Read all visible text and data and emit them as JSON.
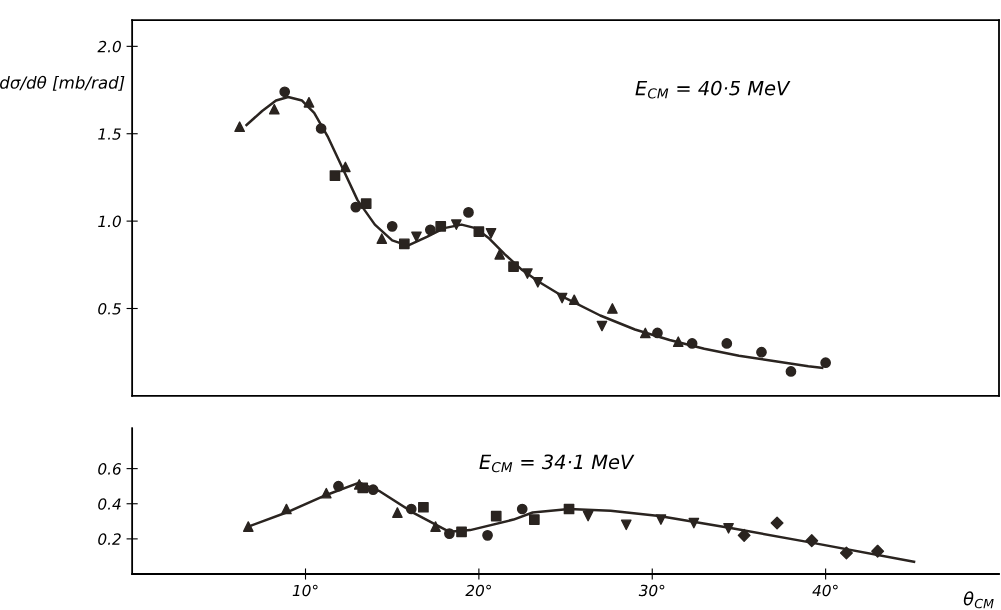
{
  "chart_data": [
    {
      "type": "scatter",
      "ylabel": "dσ/dθ [mb/rad]",
      "annotations": [
        "E$_{CM}$ = 40·5 MeV"
      ],
      "xlim": [
        0,
        50
      ],
      "ylim": [
        0,
        2.15
      ],
      "yticks": [
        {
          "value": 0.5,
          "label": "0.5"
        },
        {
          "value": 1.0,
          "label": "1.0"
        },
        {
          "value": 1.5,
          "label": "1.5"
        },
        {
          "value": 2.0,
          "label": "2.0"
        }
      ],
      "tick_labels": "y",
      "grid": false,
      "legend": false,
      "series": [
        {
          "type": "line",
          "color": "#2a2420",
          "marker": "none",
          "line_style": "solid",
          "x": [
            6.6,
            7.5,
            8.3,
            9.0,
            9.8,
            10.5,
            11.3,
            12.2,
            13.0,
            14.0,
            15.0,
            15.9,
            17.0,
            18.0,
            19.0,
            19.8,
            20.6,
            21.5,
            22.5,
            23.5,
            25.0,
            27.0,
            29.0,
            31.0,
            33.0,
            35.0,
            37.0,
            39.0,
            39.8
          ],
          "values": [
            1.55,
            1.63,
            1.69,
            1.71,
            1.69,
            1.62,
            1.48,
            1.29,
            1.12,
            0.98,
            0.89,
            0.86,
            0.91,
            0.96,
            0.98,
            0.96,
            0.9,
            0.81,
            0.72,
            0.65,
            0.56,
            0.46,
            0.38,
            0.32,
            0.27,
            0.23,
            0.2,
            0.17,
            0.16
          ]
        },
        {
          "type": "scatter",
          "color": "#2a2420",
          "marker": "circle",
          "x": [
            8.8,
            10.9,
            12.9,
            15.0,
            17.2,
            19.4,
            30.3,
            32.3,
            34.3,
            36.3,
            38.0,
            40.0
          ],
          "values": [
            1.74,
            1.53,
            1.08,
            0.97,
            0.95,
            1.05,
            0.36,
            0.3,
            0.3,
            0.25,
            0.14,
            0.19
          ]
        },
        {
          "type": "scatter",
          "color": "#2a2420",
          "marker": "triangle",
          "x": [
            6.2,
            8.2,
            10.2,
            12.3,
            14.4,
            21.2,
            25.5,
            27.7,
            29.6,
            31.5
          ],
          "values": [
            1.54,
            1.64,
            1.68,
            1.31,
            0.9,
            0.81,
            0.55,
            0.5,
            0.36,
            0.31
          ]
        },
        {
          "type": "scatter",
          "color": "#2a2420",
          "marker": "square",
          "x": [
            11.7,
            13.5,
            15.7,
            17.8,
            20.0,
            22.0
          ],
          "values": [
            1.26,
            1.1,
            0.87,
            0.97,
            0.94,
            0.74
          ]
        },
        {
          "type": "scatter",
          "color": "#2a2420",
          "marker": "triangle_down",
          "x": [
            16.4,
            18.7,
            20.7,
            22.8,
            23.4,
            24.8,
            27.1
          ],
          "values": [
            0.91,
            0.98,
            0.93,
            0.7,
            0.65,
            0.56,
            0.4
          ]
        }
      ]
    },
    {
      "type": "scatter",
      "xlabel": "θ$_{CM}$",
      "annotations": [
        "E$_{CM}$ = 34·1 MeV"
      ],
      "xlim": [
        0,
        50
      ],
      "ylim": [
        0,
        0.83
      ],
      "xticks": [
        {
          "value": 10,
          "label": "10°"
        },
        {
          "value": 20,
          "label": "20°"
        },
        {
          "value": 30,
          "label": "30°"
        },
        {
          "value": 40,
          "label": "40°"
        }
      ],
      "yticks": [
        0.2,
        0.4,
        0.6
      ],
      "grid": false,
      "legend": false,
      "series": [
        {
          "type": "line",
          "color": "#2a2420",
          "marker": "none",
          "line_style": "solid",
          "x": [
            6.7,
            8.9,
            11.2,
            13.1,
            14.3,
            16.2,
            18.3,
            19.5,
            22.0,
            23.1,
            25.2,
            27.6,
            30.4,
            34.6,
            39.1,
            45.1
          ],
          "values": [
            0.27,
            0.35,
            0.45,
            0.52,
            0.47,
            0.35,
            0.24,
            0.25,
            0.31,
            0.35,
            0.37,
            0.36,
            0.33,
            0.26,
            0.18,
            0.07
          ]
        },
        {
          "type": "scatter",
          "color": "#2a2420",
          "marker": "circle",
          "x": [
            11.9,
            13.9,
            16.1,
            18.3,
            20.5,
            22.5
          ],
          "values": [
            0.5,
            0.48,
            0.37,
            0.23,
            0.22,
            0.37
          ]
        },
        {
          "type": "scatter",
          "color": "#2a2420",
          "marker": "triangle",
          "x": [
            6.7,
            8.9,
            11.2,
            13.1,
            15.3,
            17.5
          ],
          "values": [
            0.27,
            0.37,
            0.46,
            0.51,
            0.35,
            0.27
          ]
        },
        {
          "type": "scatter",
          "color": "#2a2420",
          "marker": "square",
          "x": [
            13.3,
            16.8,
            19.0,
            21.0,
            23.2,
            25.2
          ],
          "values": [
            0.49,
            0.38,
            0.24,
            0.33,
            0.31,
            0.37
          ]
        },
        {
          "type": "scatter",
          "color": "#2a2420",
          "marker": "triangle_down",
          "x": [
            26.3,
            28.5,
            30.5,
            32.4,
            34.4
          ],
          "values": [
            0.33,
            0.28,
            0.31,
            0.29,
            0.26
          ]
        },
        {
          "type": "scatter",
          "color": "#2a2420",
          "marker": "diamond",
          "x": [
            35.3,
            37.2,
            39.2,
            41.2,
            43.0
          ],
          "values": [
            0.22,
            0.29,
            0.19,
            0.12,
            0.13
          ]
        }
      ]
    }
  ]
}
